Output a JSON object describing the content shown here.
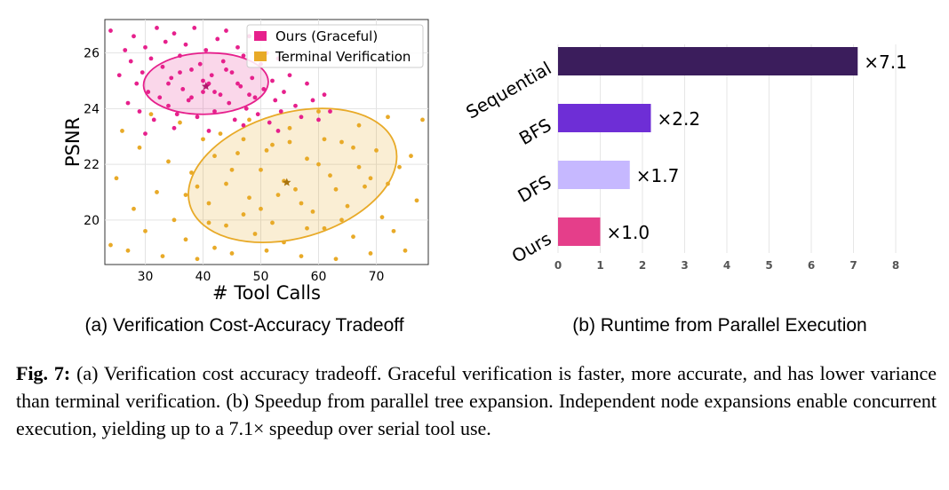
{
  "left_chart": {
    "type": "scatter",
    "subcaption": "(a) Verification Cost-Accuracy Tradeoff",
    "xlabel": "# Tool Calls",
    "ylabel": "PSNR",
    "xlim": [
      23,
      79
    ],
    "ylim": [
      18.4,
      27.2
    ],
    "xticks": [
      30,
      40,
      50,
      60,
      70
    ],
    "yticks": [
      20,
      22,
      24,
      26
    ],
    "grid": true,
    "legend_position": "top-right",
    "series": [
      {
        "name": "Ours (Graceful)",
        "color": "#e6208c",
        "mean": [
          40.5,
          24.8
        ],
        "ellipse": {
          "center": [
            40.5,
            24.9
          ],
          "rx": 10.8,
          "ry": 1.1,
          "angle_deg": -2
        },
        "points": [
          [
            24,
            26.8
          ],
          [
            25.5,
            25.2
          ],
          [
            26.5,
            26.1
          ],
          [
            27,
            24.2
          ],
          [
            27.5,
            25.7
          ],
          [
            28,
            26.6
          ],
          [
            28.5,
            24.9
          ],
          [
            29,
            23.9
          ],
          [
            29.5,
            25.3
          ],
          [
            30,
            26.2
          ],
          [
            30.5,
            24.6
          ],
          [
            31,
            25.8
          ],
          [
            31.5,
            23.6
          ],
          [
            32,
            26.9
          ],
          [
            32.5,
            24.4
          ],
          [
            33,
            25.5
          ],
          [
            33.5,
            26.4
          ],
          [
            34,
            24.1
          ],
          [
            34.5,
            25.1
          ],
          [
            35,
            26.7
          ],
          [
            35.5,
            23.8
          ],
          [
            36,
            25.9
          ],
          [
            36.5,
            24.7
          ],
          [
            37,
            26.3
          ],
          [
            37.5,
            24.3
          ],
          [
            38,
            25.4
          ],
          [
            38.5,
            26.9
          ],
          [
            39,
            23.7
          ],
          [
            39.5,
            25.6
          ],
          [
            40,
            24.6
          ],
          [
            40.5,
            26.1
          ],
          [
            41,
            24.9
          ],
          [
            41.5,
            25.2
          ],
          [
            42,
            23.9
          ],
          [
            42.5,
            26.5
          ],
          [
            43,
            24.5
          ],
          [
            43.5,
            25.7
          ],
          [
            44,
            26.8
          ],
          [
            44.5,
            24.2
          ],
          [
            45,
            25.3
          ],
          [
            45.5,
            23.6
          ],
          [
            46,
            26.2
          ],
          [
            46.5,
            24.8
          ],
          [
            47,
            25.9
          ],
          [
            47.5,
            24.0
          ],
          [
            48,
            26.6
          ],
          [
            48.5,
            25.1
          ],
          [
            49,
            24.4
          ],
          [
            49.5,
            23.8
          ],
          [
            50,
            25.6
          ],
          [
            50.5,
            24.7
          ],
          [
            51,
            26.0
          ],
          [
            51.5,
            23.5
          ],
          [
            52,
            25.0
          ],
          [
            52.5,
            24.3
          ],
          [
            53,
            25.8
          ],
          [
            53.5,
            23.9
          ],
          [
            54,
            24.6
          ],
          [
            55,
            25.2
          ],
          [
            56,
            24.1
          ],
          [
            57,
            23.7
          ],
          [
            58,
            24.9
          ],
          [
            59,
            24.3
          ],
          [
            60,
            23.6
          ],
          [
            61,
            24.5
          ],
          [
            62,
            23.9
          ],
          [
            34,
            24.9
          ],
          [
            36,
            25.3
          ],
          [
            38,
            24.4
          ],
          [
            40,
            25.0
          ],
          [
            42,
            24.6
          ],
          [
            44,
            25.4
          ],
          [
            46,
            24.9
          ],
          [
            48,
            24.5
          ],
          [
            35,
            23.3
          ],
          [
            41,
            23.2
          ],
          [
            47,
            23.4
          ],
          [
            30,
            23.1
          ],
          [
            53,
            23.2
          ]
        ]
      },
      {
        "name": "Terminal Verification",
        "color": "#e8aa28",
        "mean": [
          54.5,
          21.35
        ],
        "ellipse": {
          "center": [
            55.5,
            21.6
          ],
          "rx": 18.5,
          "ry": 2.25,
          "angle_deg": -16
        },
        "points": [
          [
            24,
            19.1
          ],
          [
            25,
            21.5
          ],
          [
            26,
            23.2
          ],
          [
            27,
            18.9
          ],
          [
            28,
            20.4
          ],
          [
            29,
            22.6
          ],
          [
            30,
            19.6
          ],
          [
            31,
            23.8
          ],
          [
            32,
            21.0
          ],
          [
            33,
            18.7
          ],
          [
            34,
            22.1
          ],
          [
            35,
            20.0
          ],
          [
            36,
            23.5
          ],
          [
            37,
            19.3
          ],
          [
            38,
            21.7
          ],
          [
            39,
            18.6
          ],
          [
            40,
            22.9
          ],
          [
            41,
            20.6
          ],
          [
            42,
            19.0
          ],
          [
            43,
            23.1
          ],
          [
            44,
            21.3
          ],
          [
            45,
            18.8
          ],
          [
            46,
            22.4
          ],
          [
            47,
            20.2
          ],
          [
            48,
            23.6
          ],
          [
            49,
            19.5
          ],
          [
            50,
            21.8
          ],
          [
            51,
            18.9
          ],
          [
            52,
            22.7
          ],
          [
            53,
            20.9
          ],
          [
            54,
            19.2
          ],
          [
            55,
            23.3
          ],
          [
            56,
            21.1
          ],
          [
            57,
            18.7
          ],
          [
            58,
            22.2
          ],
          [
            59,
            20.3
          ],
          [
            60,
            23.9
          ],
          [
            61,
            19.7
          ],
          [
            62,
            21.6
          ],
          [
            63,
            18.6
          ],
          [
            64,
            22.8
          ],
          [
            65,
            20.5
          ],
          [
            66,
            19.4
          ],
          [
            67,
            23.4
          ],
          [
            68,
            21.2
          ],
          [
            69,
            18.8
          ],
          [
            70,
            22.5
          ],
          [
            71,
            20.1
          ],
          [
            72,
            23.7
          ],
          [
            73,
            19.6
          ],
          [
            74,
            21.9
          ],
          [
            75,
            18.9
          ],
          [
            76,
            22.3
          ],
          [
            77,
            20.7
          ],
          [
            78,
            23.6
          ],
          [
            39,
            21.2
          ],
          [
            42,
            22.3
          ],
          [
            45,
            21.8
          ],
          [
            48,
            20.8
          ],
          [
            51,
            22.5
          ],
          [
            54,
            21.4
          ],
          [
            57,
            20.6
          ],
          [
            60,
            22.0
          ],
          [
            63,
            21.1
          ],
          [
            66,
            22.6
          ],
          [
            69,
            21.5
          ],
          [
            44,
            19.8
          ],
          [
            52,
            19.9
          ],
          [
            58,
            19.7
          ],
          [
            64,
            20.0
          ],
          [
            37,
            20.9
          ],
          [
            47,
            22.9
          ],
          [
            55,
            22.8
          ],
          [
            61,
            22.9
          ],
          [
            67,
            21.9
          ],
          [
            72,
            21.3
          ],
          [
            41,
            19.9
          ],
          [
            50,
            20.4
          ]
        ]
      }
    ]
  },
  "right_chart": {
    "type": "bar",
    "orientation": "horizontal",
    "subcaption": "(b) Runtime from Parallel Execution",
    "categories": [
      "Sequential",
      "BFS",
      "DFS",
      "Ours"
    ],
    "values": [
      7.1,
      2.2,
      1.7,
      1.0
    ],
    "data_labels": [
      "×7.1",
      "×2.2",
      "×1.7",
      "×1.0"
    ],
    "colors": [
      "#3b1d5c",
      "#6e2ed6",
      "#c6b8ff",
      "#e53e8a"
    ],
    "xlim": [
      0,
      8
    ],
    "xticks": [
      "0",
      "1",
      "2",
      "3",
      "4",
      "5",
      "6",
      "7",
      "8"
    ],
    "grid": true
  },
  "caption": {
    "label": "Fig. 7:",
    "text": "(a) Verification cost accuracy tradeoff. Graceful verification is faster, more accurate, and has lower variance than terminal verification. (b) Speedup from parallel tree expansion. Independent node expansions enable concurrent execution, yielding up to a 7.1× speedup over serial tool use."
  }
}
